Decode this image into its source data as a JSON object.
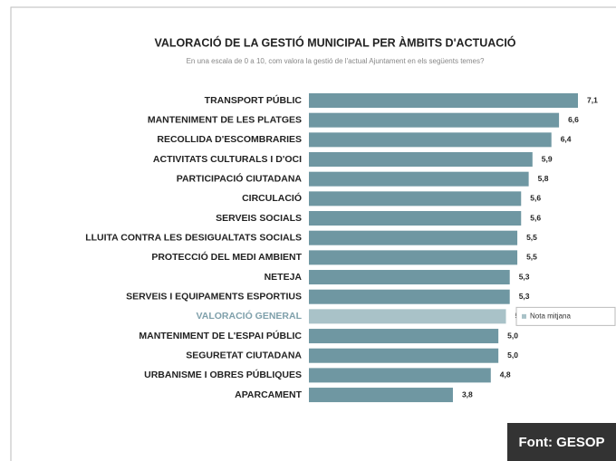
{
  "chart_data": {
    "type": "bar",
    "orientation": "horizontal",
    "title": "VALORACIÓ DE LA GESTIÓ MUNICIPAL PER ÀMBITS D'ACTUACIÓ",
    "subtitle": "En una escala de 0 a 10, com valora la gestió de l'actual Ajuntament en els següents temes?",
    "categories": [
      "TRANSPORT PÚBLIC",
      "MANTENIMENT DE LES PLATGES",
      "RECOLLIDA D'ESCOMBRARIES",
      "ACTIVITATS CULTURALS I D'OCI",
      "PARTICIPACIÓ CIUTADANA",
      "CIRCULACIÓ",
      "SERVEIS SOCIALS",
      "LLUITA CONTRA LES DESIGUALTATS SOCIALS",
      "PROTECCIÓ DEL MEDI AMBIENT",
      "NETEJA",
      "SERVEIS I EQUIPAMENTS ESPORTIUS",
      "VALORACIÓ GENERAL",
      "MANTENIMENT DE L'ESPAI PÚBLIC",
      "SEGURETAT CIUTADANA",
      "URBANISME I OBRES PÚBLIQUES",
      "APARCAMENT"
    ],
    "values": [
      7.1,
      6.6,
      6.4,
      5.9,
      5.8,
      5.6,
      5.6,
      5.5,
      5.5,
      5.3,
      5.3,
      5.2,
      5.0,
      5.0,
      4.8,
      3.8
    ],
    "value_labels": [
      "7,1",
      "6,6",
      "6,4",
      "5,9",
      "5,8",
      "5,6",
      "5,6",
      "5,5",
      "5,5",
      "5,3",
      "5,3",
      "5,2",
      "5,0",
      "5,0",
      "4,8",
      "3,8"
    ],
    "colors": [
      "#6f97a2",
      "#6f97a2",
      "#6f97a2",
      "#6f97a2",
      "#6f97a2",
      "#6f97a2",
      "#6f97a2",
      "#6f97a2",
      "#6f97a2",
      "#6f97a2",
      "#6f97a2",
      "#a9c2c8",
      "#6f97a2",
      "#6f97a2",
      "#6f97a2",
      "#6f97a2"
    ],
    "label_colors": [
      "#222",
      "#222",
      "#222",
      "#222",
      "#222",
      "#222",
      "#222",
      "#222",
      "#222",
      "#222",
      "#222",
      "#7fa0ab",
      "#222",
      "#222",
      "#222",
      "#222"
    ],
    "legend": {
      "label": "Nota mitjana",
      "color": "#a9c2c8",
      "row": 11
    },
    "source": "Font: GESOP"
  }
}
